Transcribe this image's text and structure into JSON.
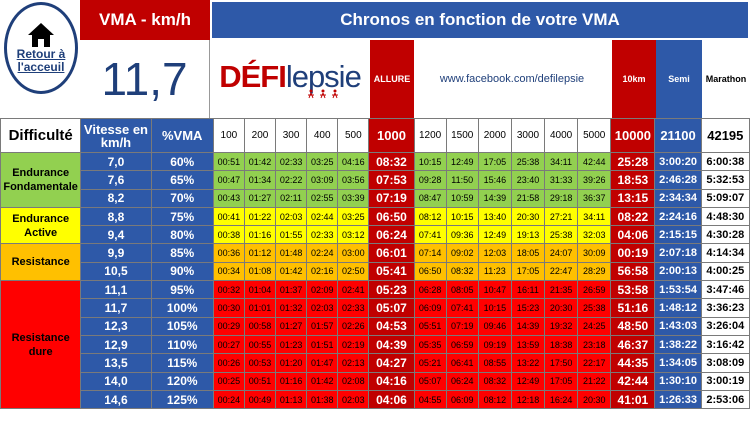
{
  "home": {
    "label_line1": "Retour à",
    "label_line2": "l'acceuil",
    "icon": "house-icon"
  },
  "vma": {
    "label": "VMA - km/h",
    "value": "11,7"
  },
  "title": "Chronos en fonction de votre VMA",
  "logo": {
    "prefix": "DÉFI",
    "suffix": "lepsie"
  },
  "allure_label": "ALLURE",
  "facebook_url": "www.facebook.com/defilepsie",
  "col_10km": "10km",
  "col_semi": "Semi",
  "col_marathon": "Marathon",
  "headers": {
    "difficulty": "Difficulté",
    "speed": "Vitesse en km/h",
    "pct": "%VMA",
    "dist_short": [
      "100",
      "200",
      "300",
      "400",
      "500"
    ],
    "dist_1000": "1000",
    "dist_long": [
      "1200",
      "1500",
      "2000",
      "3000",
      "4000",
      "5000"
    ],
    "dist_10000": "10000",
    "dist_21100": "21100",
    "dist_42195": "42195"
  },
  "zones": [
    {
      "label": "Endurance Fondamentale",
      "color": "#92d050",
      "cls": "z-green",
      "rows": 3
    },
    {
      "label": "Endurance Active",
      "color": "#ffff00",
      "cls": "z-yellow",
      "rows": 2
    },
    {
      "label": "Resistance",
      "color": "#ffc000",
      "cls": "z-orange",
      "rows": 2
    },
    {
      "label": "Resistance dure",
      "color": "#ff0000",
      "cls": "z-red",
      "rows": 7
    }
  ],
  "rows": [
    {
      "speed": "7,0",
      "pct": "60%",
      "short": [
        "00:51",
        "01:42",
        "02:33",
        "03:25",
        "04:16"
      ],
      "allure": "08:32",
      "long": [
        "10:15",
        "12:49",
        "17:05",
        "25:38",
        "34:11",
        "42:44"
      ],
      "k10": "25:28",
      "semi": "3:00:20",
      "mara": "6:00:38"
    },
    {
      "speed": "7,6",
      "pct": "65%",
      "short": [
        "00:47",
        "01:34",
        "02:22",
        "03:09",
        "03:56"
      ],
      "allure": "07:53",
      "long": [
        "09:28",
        "11:50",
        "15:46",
        "23:40",
        "31:33",
        "39:26"
      ],
      "k10": "18:53",
      "semi": "2:46:28",
      "mara": "5:32:53"
    },
    {
      "speed": "8,2",
      "pct": "70%",
      "short": [
        "00:43",
        "01:27",
        "02:11",
        "02:55",
        "03:39"
      ],
      "allure": "07:19",
      "long": [
        "08:47",
        "10:59",
        "14:39",
        "21:58",
        "29:18",
        "36:37"
      ],
      "k10": "13:15",
      "semi": "2:34:34",
      "mara": "5:09:07"
    },
    {
      "speed": "8,8",
      "pct": "75%",
      "short": [
        "00:41",
        "01:22",
        "02:03",
        "02:44",
        "03:25"
      ],
      "allure": "06:50",
      "long": [
        "08:12",
        "10:15",
        "13:40",
        "20:30",
        "27:21",
        "34:11"
      ],
      "k10": "08:22",
      "semi": "2:24:16",
      "mara": "4:48:30"
    },
    {
      "speed": "9,4",
      "pct": "80%",
      "short": [
        "00:38",
        "01:16",
        "01:55",
        "02:33",
        "03:12"
      ],
      "allure": "06:24",
      "long": [
        "07:41",
        "09:36",
        "12:49",
        "19:13",
        "25:38",
        "32:03"
      ],
      "k10": "04:06",
      "semi": "2:15:15",
      "mara": "4:30:28"
    },
    {
      "speed": "9,9",
      "pct": "85%",
      "short": [
        "00:36",
        "01:12",
        "01:48",
        "02:24",
        "03:00"
      ],
      "allure": "06:01",
      "long": [
        "07:14",
        "09:02",
        "12:03",
        "18:05",
        "24:07",
        "30:09"
      ],
      "k10": "00:19",
      "semi": "2:07:18",
      "mara": "4:14:34"
    },
    {
      "speed": "10,5",
      "pct": "90%",
      "short": [
        "00:34",
        "01:08",
        "01:42",
        "02:16",
        "02:50"
      ],
      "allure": "05:41",
      "long": [
        "06:50",
        "08:32",
        "11:23",
        "17:05",
        "22:47",
        "28:29"
      ],
      "k10": "56:58",
      "semi": "2:00:13",
      "mara": "4:00:25"
    },
    {
      "speed": "11,1",
      "pct": "95%",
      "short": [
        "00:32",
        "01:04",
        "01:37",
        "02:09",
        "02:41"
      ],
      "allure": "05:23",
      "long": [
        "06:28",
        "08:05",
        "10:47",
        "16:11",
        "21:35",
        "26:59"
      ],
      "k10": "53:58",
      "semi": "1:53:54",
      "mara": "3:47:46"
    },
    {
      "speed": "11,7",
      "pct": "100%",
      "short": [
        "00:30",
        "01:01",
        "01:32",
        "02:03",
        "02:33"
      ],
      "allure": "05:07",
      "long": [
        "06:09",
        "07:41",
        "10:15",
        "15:23",
        "20:30",
        "25:38"
      ],
      "k10": "51:16",
      "semi": "1:48:12",
      "mara": "3:36:23"
    },
    {
      "speed": "12,3",
      "pct": "105%",
      "short": [
        "00:29",
        "00:58",
        "01:27",
        "01:57",
        "02:26"
      ],
      "allure": "04:53",
      "long": [
        "05:51",
        "07:19",
        "09:46",
        "14:39",
        "19:32",
        "24:25"
      ],
      "k10": "48:50",
      "semi": "1:43:03",
      "mara": "3:26:04"
    },
    {
      "speed": "12,9",
      "pct": "110%",
      "short": [
        "00:27",
        "00:55",
        "01:23",
        "01:51",
        "02:19"
      ],
      "allure": "04:39",
      "long": [
        "05:35",
        "06:59",
        "09:19",
        "13:59",
        "18:38",
        "23:18"
      ],
      "k10": "46:37",
      "semi": "1:38:22",
      "mara": "3:16:42"
    },
    {
      "speed": "13,5",
      "pct": "115%",
      "short": [
        "00:26",
        "00:53",
        "01:20",
        "01:47",
        "02:13"
      ],
      "allure": "04:27",
      "long": [
        "05:21",
        "06:41",
        "08:55",
        "13:22",
        "17:50",
        "22:17"
      ],
      "k10": "44:35",
      "semi": "1:34:05",
      "mara": "3:08:09"
    },
    {
      "speed": "14,0",
      "pct": "120%",
      "short": [
        "00:25",
        "00:51",
        "01:16",
        "01:42",
        "02:08"
      ],
      "allure": "04:16",
      "long": [
        "05:07",
        "06:24",
        "08:32",
        "12:49",
        "17:05",
        "21:22"
      ],
      "k10": "42:44",
      "semi": "1:30:10",
      "mara": "3:00:19"
    },
    {
      "speed": "14,6",
      "pct": "125%",
      "short": [
        "00:24",
        "00:49",
        "01:13",
        "01:38",
        "02:03"
      ],
      "allure": "04:06",
      "long": [
        "04:55",
        "06:09",
        "08:12",
        "12:18",
        "16:24",
        "20:30"
      ],
      "k10": "41:01",
      "semi": "1:26:33",
      "mara": "2:53:06"
    }
  ]
}
